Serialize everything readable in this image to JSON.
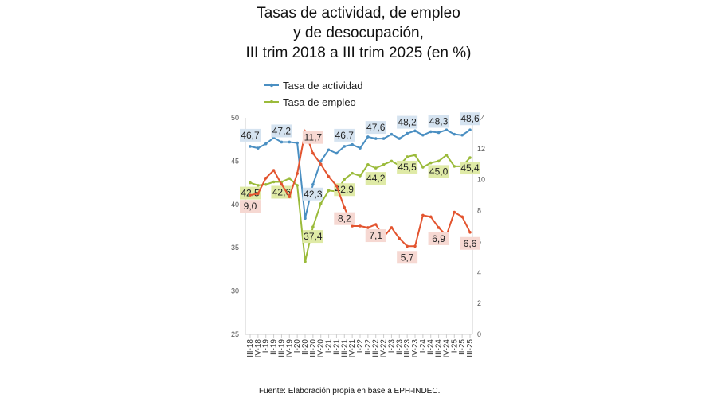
{
  "chart_data": {
    "type": "line",
    "title": [
      "Tasas de actividad, de empleo",
      "y de desocupación,",
      "III trim 2018 a III trim 2025 (en %)"
    ],
    "source": "Fuente: Elaboración propia en base a EPH-INDEC.",
    "categories": [
      "III-18",
      "IV-18",
      "I-19",
      "II-19",
      "III-19",
      "IV-19",
      "I-20",
      "II-20",
      "III-20",
      "IV-20",
      "I-21",
      "II-21",
      "III-21",
      "IV-21",
      "I-22",
      "II-22",
      "III-22",
      "IV-22",
      "I-23",
      "II-23",
      "III-23",
      "IV-23",
      "I-24",
      "II-24",
      "III-24",
      "IV-24",
      "I-25",
      "II-25",
      "III-25"
    ],
    "ylim_left": [
      25,
      50
    ],
    "yticks_left": [
      25,
      30,
      35,
      40,
      45,
      50
    ],
    "ylim_right": [
      0,
      14
    ],
    "yticks_right": [
      0,
      2,
      4,
      6,
      8,
      10,
      12,
      14
    ],
    "grid": false,
    "legend": "top-left",
    "series": [
      {
        "name": "Tasa de actividad",
        "axis": "left",
        "color": "#4a8fc2",
        "label_bg": "#d5e3f0",
        "values": [
          46.7,
          46.5,
          47.0,
          47.7,
          47.2,
          47.2,
          47.1,
          38.4,
          42.3,
          45.0,
          46.3,
          45.9,
          46.7,
          46.9,
          46.5,
          47.8,
          47.6,
          47.6,
          48.1,
          47.6,
          48.2,
          48.5,
          48.0,
          48.4,
          48.3,
          48.6,
          48.1,
          48.0,
          48.6
        ],
        "labels": [
          "46,7",
          null,
          null,
          null,
          "47,2",
          null,
          null,
          null,
          "42,3",
          null,
          null,
          null,
          "46,7",
          null,
          null,
          null,
          "47,6",
          null,
          null,
          null,
          "48,2",
          null,
          null,
          null,
          "48,3",
          null,
          null,
          null,
          "48,6"
        ]
      },
      {
        "name": "Tasa de empleo",
        "axis": "left",
        "color": "#9bbb3b",
        "label_bg": "#dfeaa6",
        "values": [
          42.5,
          42.2,
          42.3,
          42.6,
          42.6,
          43.0,
          42.2,
          33.4,
          37.4,
          40.1,
          41.6,
          41.5,
          42.9,
          43.6,
          43.3,
          44.6,
          44.2,
          44.6,
          45.0,
          44.5,
          45.5,
          45.7,
          44.3,
          44.8,
          45.0,
          45.7,
          44.4,
          44.4,
          45.4
        ],
        "labels": [
          "42,5",
          null,
          null,
          null,
          "42,6",
          null,
          null,
          null,
          "37,4",
          null,
          null,
          null,
          "42,9",
          null,
          null,
          null,
          "44,2",
          null,
          null,
          null,
          "45,5",
          null,
          null,
          null,
          "45,0",
          null,
          null,
          null,
          "45,4"
        ]
      },
      {
        "axis": "right",
        "color": "#e3542f",
        "label_bg": "#f6d8d2",
        "values": [
          9.0,
          9.1,
          10.1,
          10.6,
          9.7,
          8.9,
          10.4,
          13.1,
          11.7,
          11.0,
          10.2,
          9.6,
          8.2,
          7.0,
          7.0,
          6.9,
          7.1,
          6.3,
          6.9,
          6.2,
          5.7,
          5.7,
          7.7,
          7.6,
          6.9,
          6.4,
          7.9,
          7.6,
          6.6
        ],
        "labels": [
          "9,0",
          null,
          null,
          null,
          null,
          null,
          null,
          null,
          "11,7",
          null,
          null,
          null,
          "8,2",
          null,
          null,
          null,
          "7,1",
          null,
          null,
          null,
          "5,7",
          null,
          null,
          null,
          "6,9",
          null,
          null,
          null,
          "6,6"
        ]
      }
    ]
  }
}
